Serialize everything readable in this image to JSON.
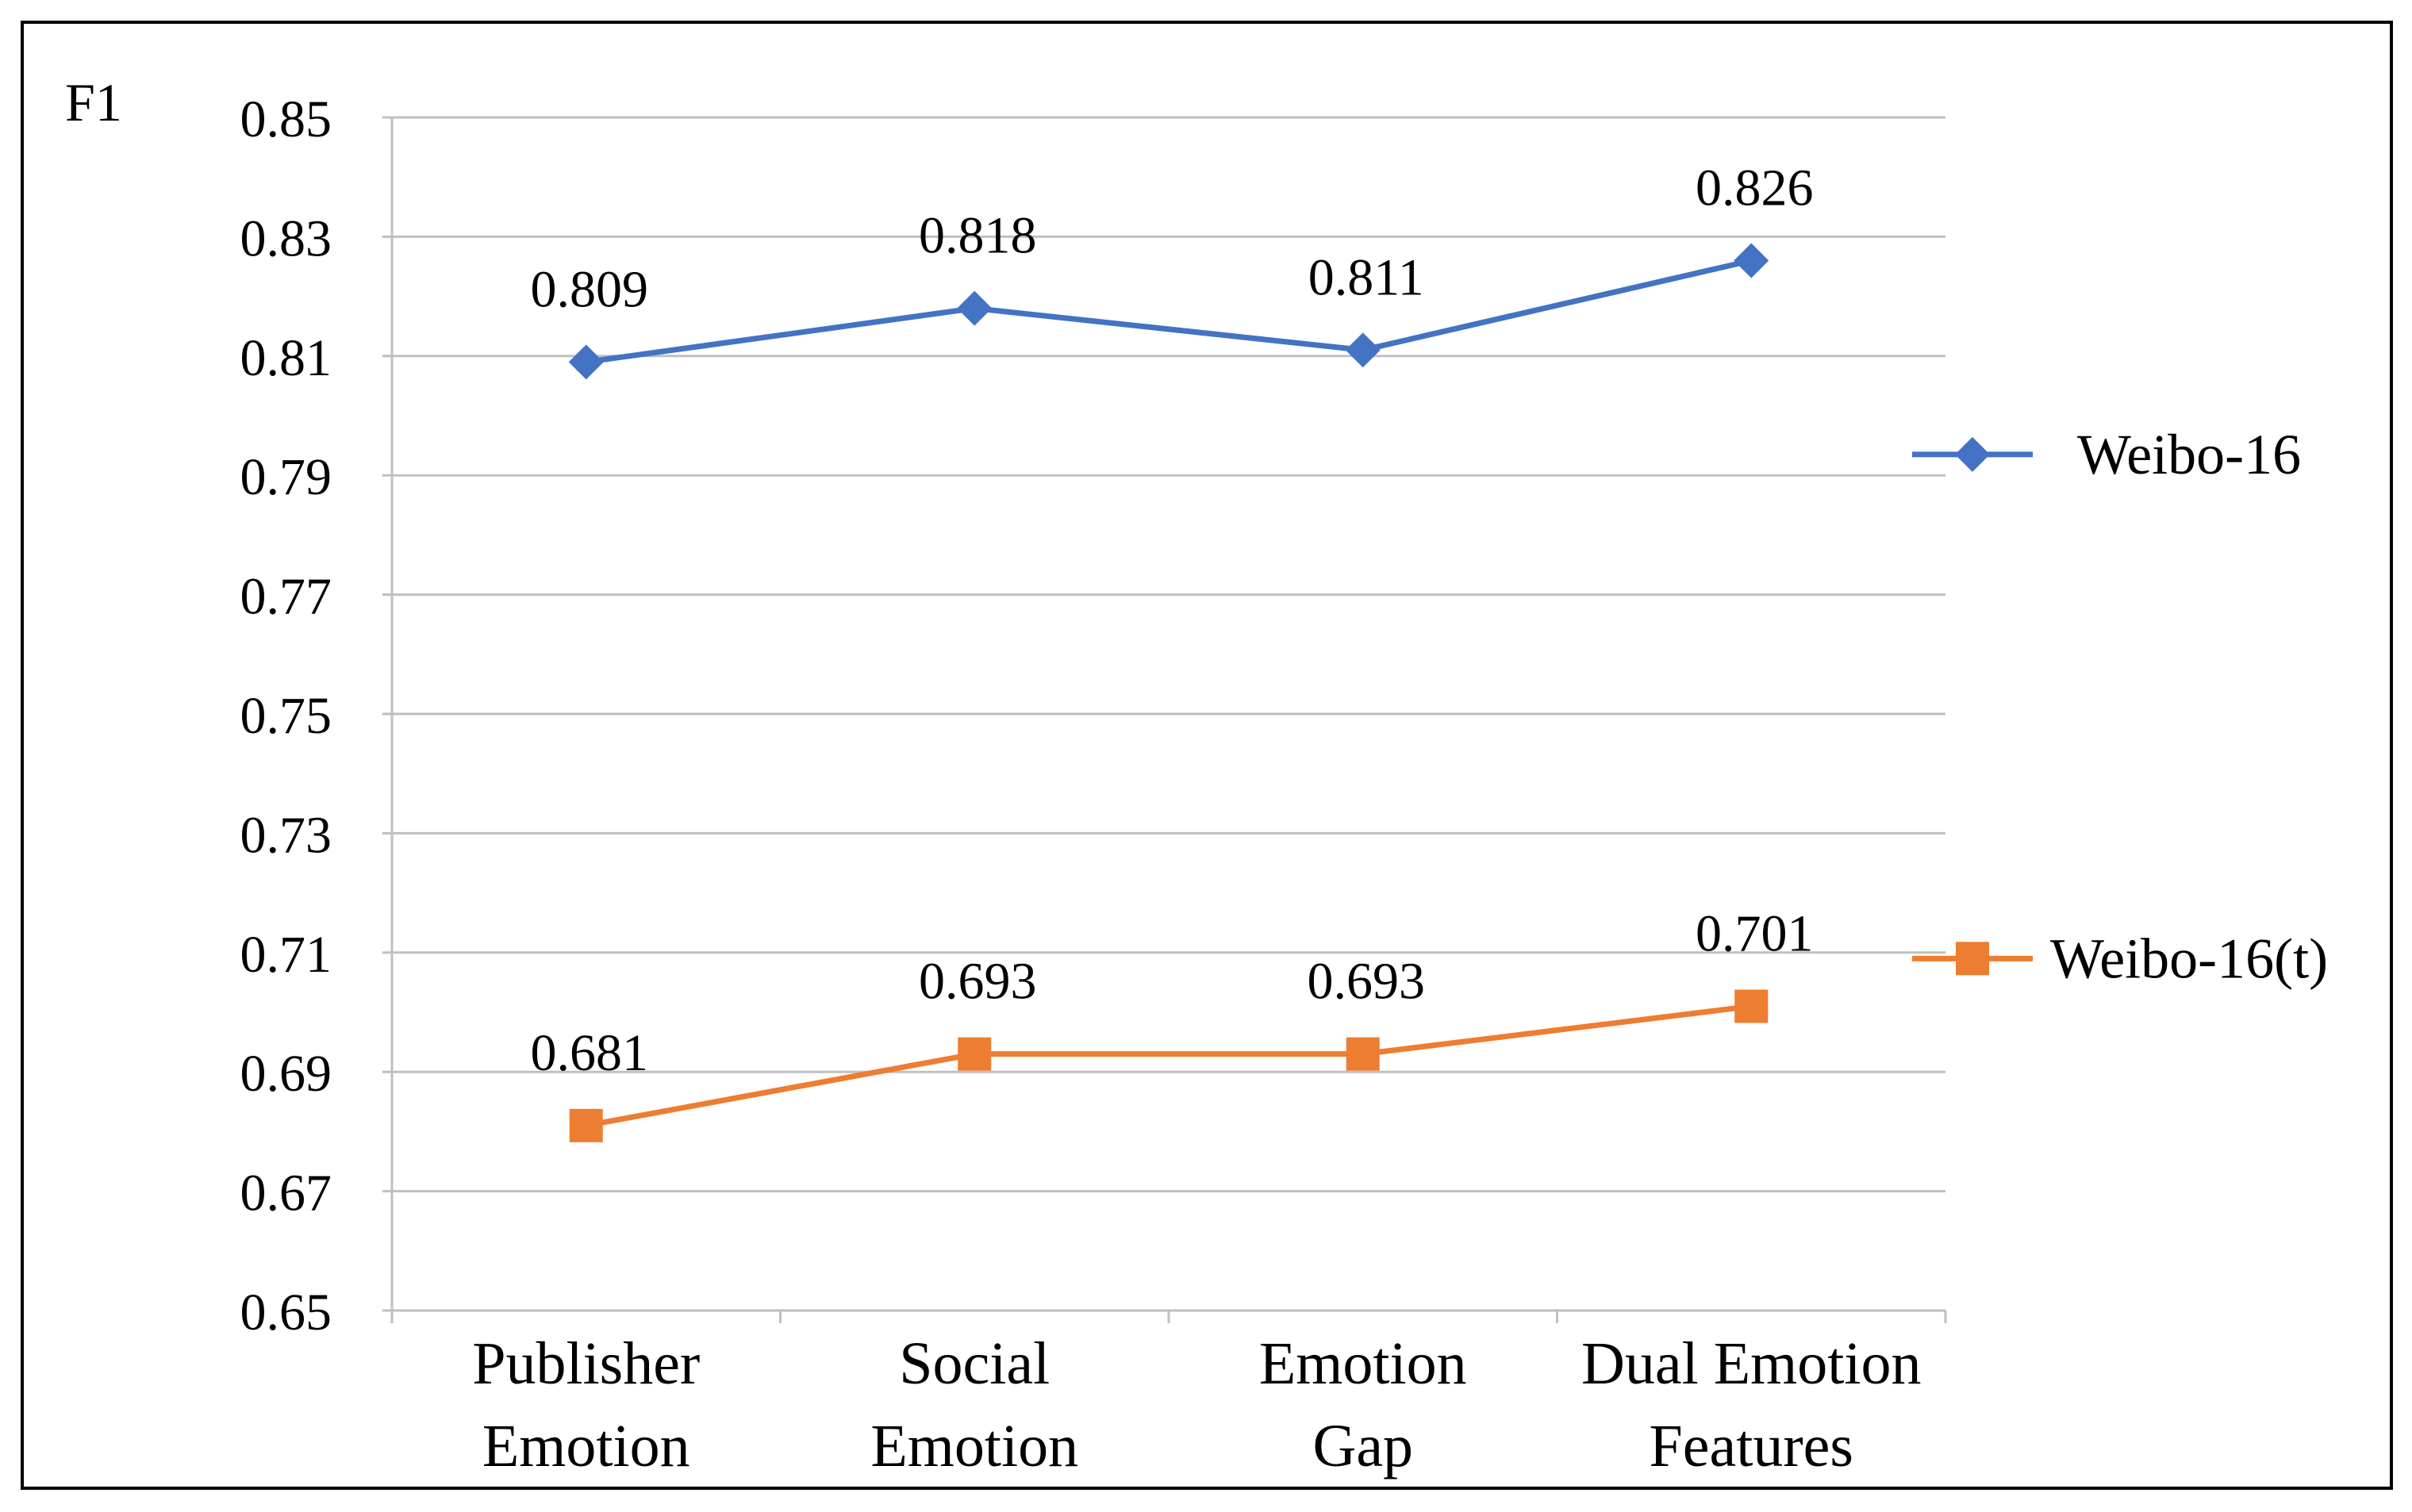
{
  "chart_data": {
    "type": "line",
    "ylabel": "F1",
    "xlabel": "",
    "ylim": [
      0.65,
      0.85
    ],
    "yticks": [
      "0.85",
      "0.83",
      "0.81",
      "0.79",
      "0.77",
      "0.75",
      "0.73",
      "0.71",
      "0.69",
      "0.67",
      "0.65"
    ],
    "grid": true,
    "legend_position": "right",
    "categories": [
      [
        "Publisher",
        "Emotion"
      ],
      [
        "Social",
        "Emotion"
      ],
      [
        "Emotion",
        "Gap"
      ],
      [
        "Dual Emotion",
        "Features"
      ]
    ],
    "series": [
      {
        "name": "Weibo-16",
        "color": "#4472C4",
        "marker": "diamond",
        "values": [
          0.809,
          0.818,
          0.811,
          0.826
        ],
        "labels": [
          "0.809",
          "0.818",
          "0.811",
          "0.826"
        ]
      },
      {
        "name": "Weibo-16(t)",
        "color": "#ED7D31",
        "marker": "square",
        "values": [
          0.681,
          0.693,
          0.693,
          0.701
        ],
        "labels": [
          "0.681",
          "0.693",
          "0.693",
          "0.701"
        ]
      }
    ]
  }
}
